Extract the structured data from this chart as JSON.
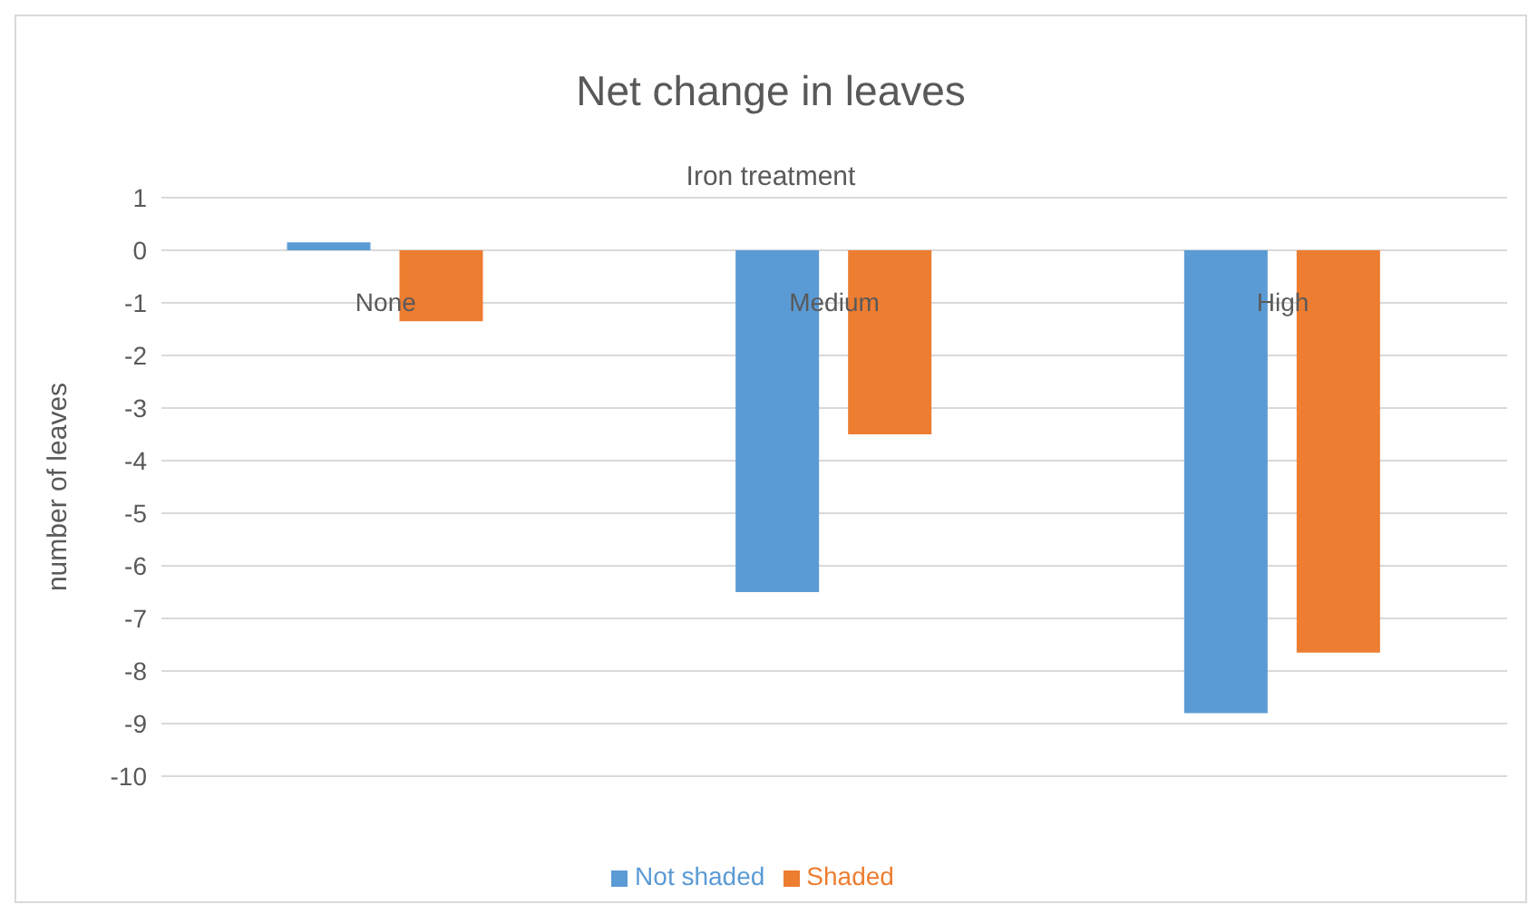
{
  "chart_data": {
    "type": "bar",
    "title": "Net change in leaves",
    "xlabel": "Iron treatment",
    "ylabel": "number of leaves",
    "categories": [
      "None",
      "Medium",
      "High"
    ],
    "series": [
      {
        "name": "Not shaded",
        "color": "#5b9bd5",
        "values": [
          0.15,
          -6.5,
          -8.8
        ]
      },
      {
        "name": "Shaded",
        "color": "#ed7d31",
        "values": [
          -1.35,
          -3.5,
          -7.65
        ]
      }
    ],
    "ylim": [
      -10,
      1
    ],
    "yticks": [
      1,
      0,
      -1,
      -2,
      -3,
      -4,
      -5,
      -6,
      -7,
      -8,
      -9,
      -10
    ],
    "grid": "y",
    "legend": "bottom"
  }
}
